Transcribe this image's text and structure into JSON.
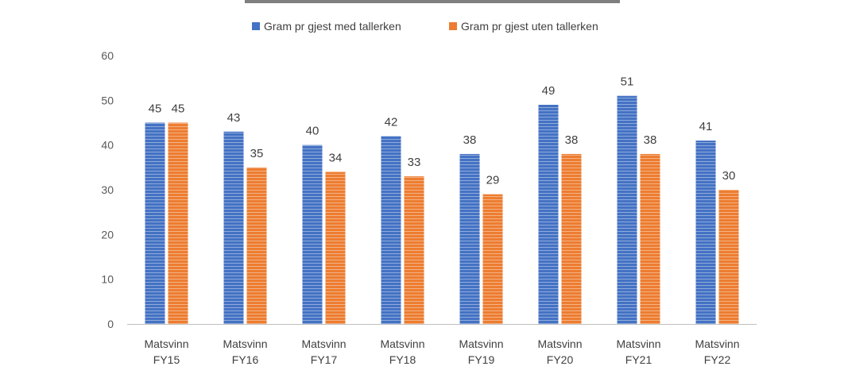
{
  "chart_data": {
    "type": "bar",
    "title": "",
    "xlabel": "",
    "ylabel": "",
    "ylim": [
      0,
      60
    ],
    "yticks": [
      0,
      10,
      20,
      30,
      40,
      50,
      60
    ],
    "grid": false,
    "legend_position": "top-center",
    "categories": [
      [
        "Matsvinn",
        "FY15"
      ],
      [
        "Matsvinn",
        "FY16"
      ],
      [
        "Matsvinn",
        "FY17"
      ],
      [
        "Matsvinn",
        "FY18"
      ],
      [
        "Matsvinn",
        "FY19"
      ],
      [
        "Matsvinn",
        "FY20"
      ],
      [
        "Matsvinn",
        "FY21"
      ],
      [
        "Matsvinn",
        "FY22"
      ]
    ],
    "series": [
      {
        "name": "Gram pr gjest med tallerken",
        "color": "#4472c4",
        "values": [
          45,
          43,
          40,
          42,
          38,
          49,
          51,
          41
        ]
      },
      {
        "name": "Gram pr gjest uten tallerken",
        "color": "#ed7d31",
        "values": [
          45,
          35,
          34,
          33,
          29,
          38,
          38,
          30
        ]
      }
    ]
  }
}
